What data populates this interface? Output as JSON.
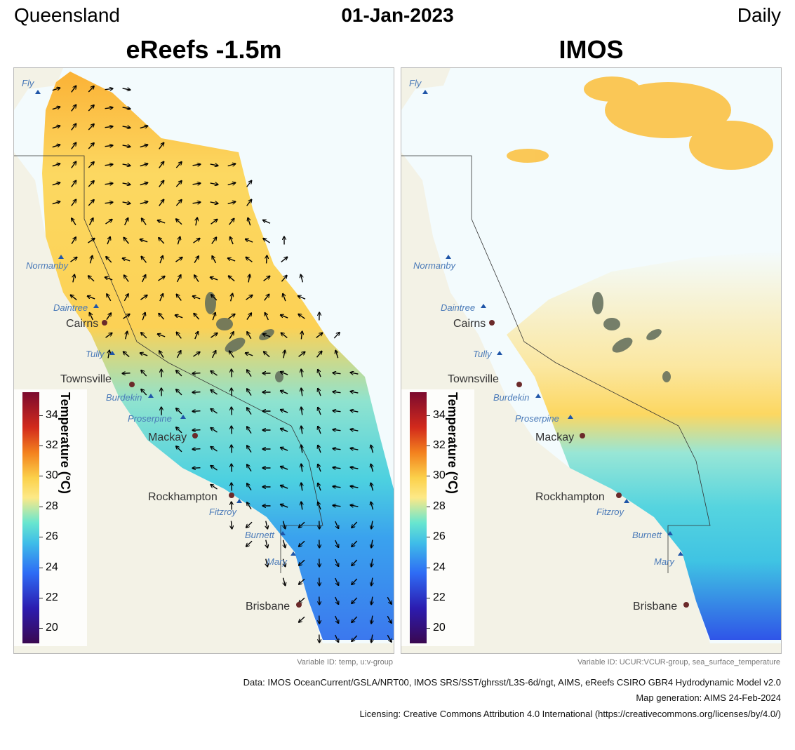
{
  "header": {
    "region": "Queensland",
    "date": "01-Jan-2023",
    "frequency": "Daily"
  },
  "panels": [
    {
      "title": "eReefs -1.5m",
      "variable_id": "Variable ID: temp, u:v-group"
    },
    {
      "title": "IMOS",
      "variable_id": "Variable ID: UCUR:VCUR-group, sea_surface_temperature"
    }
  ],
  "legend": {
    "title": "Temperature (°C)",
    "ticks": [
      "34",
      "32",
      "30",
      "28",
      "26",
      "24",
      "22",
      "20"
    ],
    "range": [
      19,
      35.5
    ]
  },
  "places": {
    "cities": [
      "Cairns",
      "Townsville",
      "Mackay",
      "Rockhampton",
      "Brisbane"
    ],
    "rivers": [
      "Fly",
      "Normanby",
      "Daintree",
      "Tully",
      "Burdekin",
      "Proserpine",
      "Fitzroy",
      "Burnett",
      "Mary"
    ]
  },
  "footer": {
    "data": "Data: IMOS OceanCurrent/GSLA/NRT00, IMOS SRS/SST/ghrsst/L3S-6d/ngt, AIMS, eReefs CSIRO GBR4 Hydrodynamic Model v2.0",
    "generation": "Map generation: AIMS 24-Feb-2024",
    "licensing": "Licensing: Creative Commons Attribution 4.0 International (https://creativecommons.org/licenses/by/4.0/)"
  },
  "colors": {
    "land": "#f3f2e6",
    "ocean": "#f3fbfd",
    "reef": "#5f6b5a",
    "city_dot": "#6b2a2a",
    "river_marker": "#1f55a8",
    "river_label": "#4a7ab8"
  }
}
